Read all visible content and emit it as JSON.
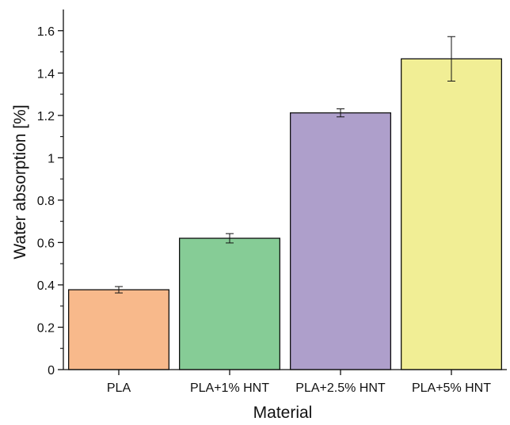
{
  "chart_data": {
    "type": "bar",
    "title": "",
    "xlabel": "Material",
    "ylabel": "Water absorption [%]",
    "categories": [
      "PLA",
      "PLA+1% HNT",
      "PLA+2.5% HNT",
      "PLA+5% HNT"
    ],
    "values": [
      0.377,
      0.62,
      1.212,
      1.467
    ],
    "errors": [
      0.015,
      0.022,
      0.019,
      0.105
    ],
    "ylim": [
      0,
      1.7
    ],
    "yticks": [
      0,
      0.2,
      0.4,
      0.6,
      0.8,
      1,
      1.2,
      1.4,
      1.6
    ],
    "ytick_labels": [
      "0",
      "0.2",
      "0.4",
      "0.6",
      "0.8",
      "1",
      "1.2",
      "1.4",
      "1.6"
    ],
    "colors": [
      "#f8b98b",
      "#86cc96",
      "#ae9fcb",
      "#f1ee95"
    ],
    "edge_color": "#111111",
    "grid": false,
    "legend": "none"
  }
}
